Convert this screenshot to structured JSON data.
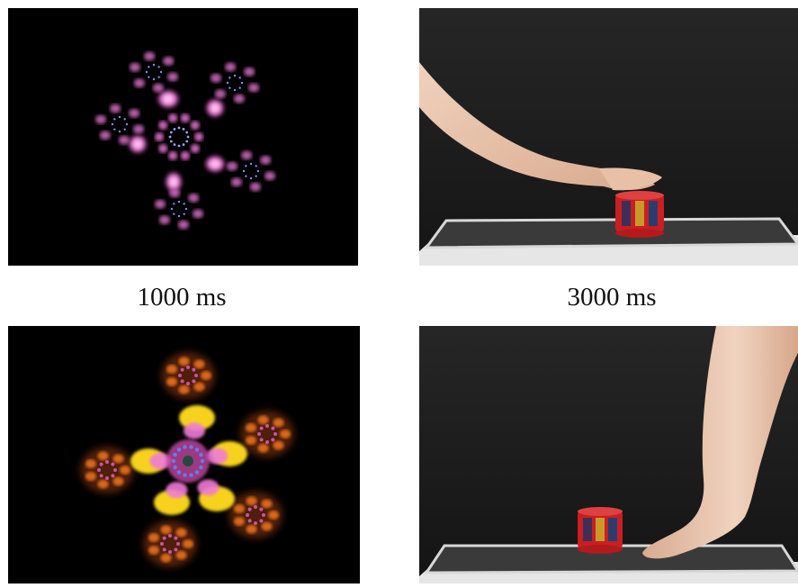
{
  "captions": {
    "left": "1000 ms",
    "right": "3000 ms"
  },
  "colors": {
    "background": "#ffffff",
    "panel_dark": "#000000",
    "stage_backdrop": "#1f1f1f",
    "particle_magenta": "#f07ad8",
    "particle_yellow": "#f6d21a",
    "particle_orange": "#e8701a",
    "particle_blue": "#6a7cf0",
    "toy_red": "#d8282a",
    "skin": "#e9c3a8"
  },
  "icons": {
    "top_left": "magenta-particle-burst",
    "bottom_left": "yellow-magenta-particle-burst",
    "top_right": "hand-touching-toy",
    "bottom_right": "foot-touching-toy"
  }
}
